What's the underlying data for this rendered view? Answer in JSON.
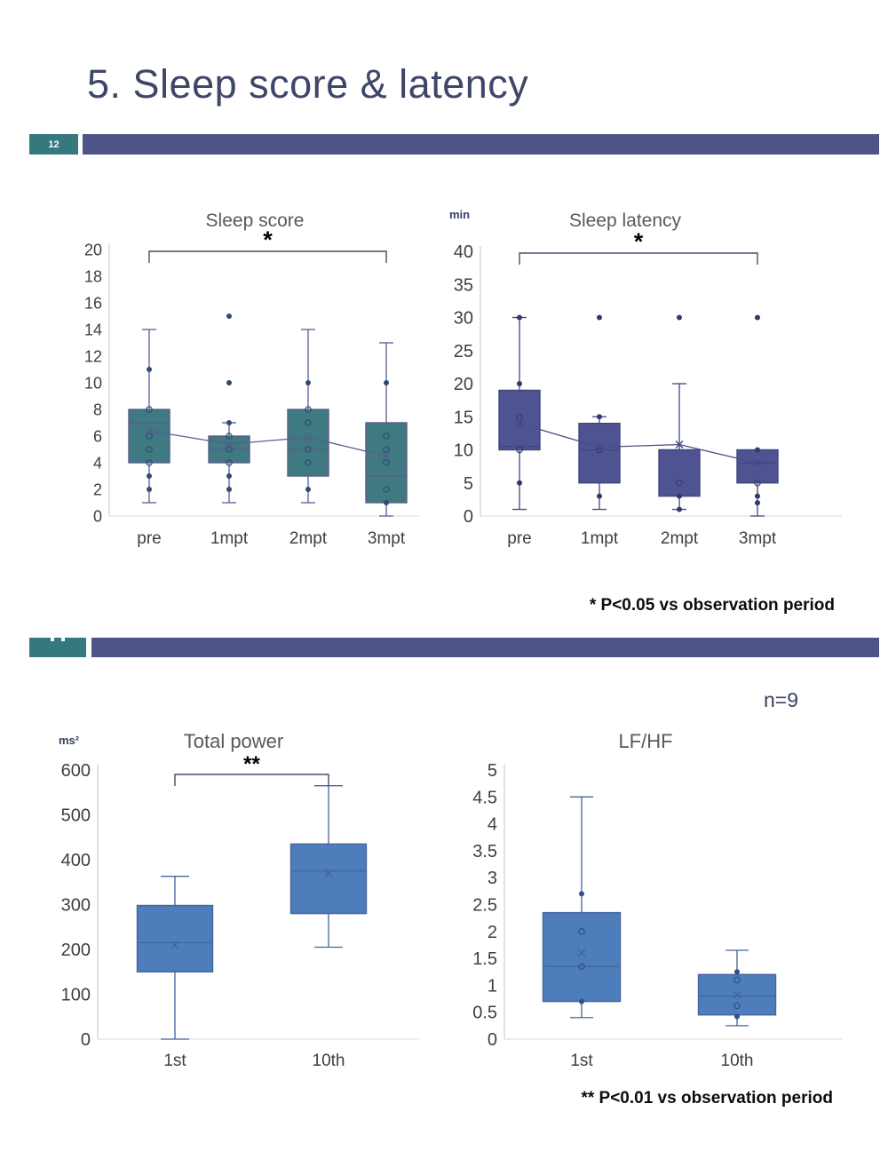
{
  "page": {
    "title": "5. Sleep score & latency",
    "slide_number": "12",
    "note1": "* P<0.05 vs observation period",
    "note2": "** P<0.01 vs observation period",
    "sample_size": "n=9"
  },
  "colors": {
    "title_text": "#3F4769",
    "divider_bar": "#4E5488",
    "slide_badge": "#35797E",
    "axis_text": "#3f3f3f",
    "chart_title_text": "#595959",
    "unit_text": "#3A4163"
  },
  "chart_data": [
    {
      "type": "box",
      "title": "Sleep score",
      "unit": "",
      "categories": [
        "pre",
        "1mpt",
        "2mpt",
        "3mpt"
      ],
      "ylim": [
        0,
        20
      ],
      "ytick_step": 2,
      "grid": false,
      "legend": "none",
      "colors": {
        "box": "#3E7A80",
        "line": "#5B5B8E",
        "dot": "#2F4B74",
        "mean_line": "#5B5B8E"
      },
      "boxes": [
        {
          "q1": 4,
          "q3": 8,
          "median": 7,
          "mean": 6.4,
          "whisker_low": 1,
          "whisker_high": 14,
          "points_open": [
            8,
            6,
            5,
            4
          ],
          "points_filled": [
            11,
            3,
            2
          ]
        },
        {
          "q1": 4,
          "q3": 6,
          "median": 5,
          "mean": 5.4,
          "whisker_low": 1,
          "whisker_high": 7,
          "points_open": [
            6,
            5,
            4
          ],
          "points_filled": [
            15,
            10,
            7,
            3,
            2
          ]
        },
        {
          "q1": 3,
          "q3": 8,
          "median": 5,
          "mean": 5.9,
          "whisker_low": 1,
          "whisker_high": 14,
          "points_open": [
            8,
            7,
            5,
            4
          ],
          "points_filled": [
            10,
            2
          ]
        },
        {
          "q1": 1,
          "q3": 7,
          "median": 3,
          "mean": 4.5,
          "whisker_low": 0,
          "whisker_high": 13,
          "points_open": [
            6,
            5,
            4,
            2
          ],
          "points_filled": [
            10,
            1
          ]
        }
      ],
      "mean_line": [
        6.4,
        5.4,
        5.9,
        4.5
      ],
      "significance": {
        "from": "pre",
        "to": "3mpt",
        "label": "*"
      }
    },
    {
      "type": "box",
      "title": "Sleep latency",
      "unit": "min",
      "categories": [
        "pre",
        "1mpt",
        "2mpt",
        "3mpt"
      ],
      "ylim": [
        0,
        40
      ],
      "ytick_step": 5,
      "grid": false,
      "legend": "none",
      "colors": {
        "box": "#4F5391",
        "line": "#41457D",
        "dot": "#333A6B",
        "mean_line": "#4A4E86"
      },
      "boxes": [
        {
          "q1": 10,
          "q3": 19,
          "median": 10.5,
          "mean": 14,
          "whisker_low": 1,
          "whisker_high": 30,
          "points_open": [
            15,
            10
          ],
          "points_filled": [
            30,
            20,
            5
          ]
        },
        {
          "q1": 5,
          "q3": 14,
          "median": 10,
          "mean": 10.4,
          "whisker_low": 1,
          "whisker_high": 15,
          "points_open": [
            10
          ],
          "points_filled": [
            30,
            15,
            3
          ]
        },
        {
          "q1": 3,
          "q3": 10,
          "median": 10,
          "mean": 10.8,
          "whisker_low": 1,
          "whisker_high": 20,
          "points_open": [
            5
          ],
          "points_filled": [
            30,
            3,
            1
          ]
        },
        {
          "q1": 5,
          "q3": 10,
          "median": 8,
          "mean": 8,
          "whisker_low": 0,
          "whisker_high": 10,
          "points_open": [
            5
          ],
          "points_filled": [
            30,
            10,
            3,
            2
          ]
        }
      ],
      "mean_line": [
        14,
        10.4,
        10.8,
        8
      ],
      "significance": {
        "from": "pre",
        "to": "3mpt",
        "label": "*"
      }
    },
    {
      "type": "box",
      "title": "Total power",
      "unit": "ms²",
      "categories": [
        "1st",
        "10th"
      ],
      "ylim": [
        0,
        600
      ],
      "ytick_step": 100,
      "grid": false,
      "legend": "none",
      "colors": {
        "box": "#4E7DBB",
        "line": "#44649F",
        "dot": "#2E4E8E",
        "mean_line": "#44649F"
      },
      "boxes": [
        {
          "q1": 150,
          "q3": 298,
          "median": 215,
          "mean": 210,
          "whisker_low": 0,
          "whisker_high": 363,
          "points_open": [],
          "points_filled": []
        },
        {
          "q1": 280,
          "q3": 435,
          "median": 375,
          "mean": 370,
          "whisker_low": 205,
          "whisker_high": 565,
          "points_open": [],
          "points_filled": []
        }
      ],
      "mean_line": null,
      "significance": {
        "from": "1st",
        "to": "10th",
        "label": "**"
      }
    },
    {
      "type": "box",
      "title": "LF/HF",
      "unit": "",
      "categories": [
        "1st",
        "10th"
      ],
      "ylim": [
        0,
        5
      ],
      "ytick_step": 0.5,
      "grid": false,
      "legend": "none",
      "colors": {
        "box": "#4E7DBB",
        "line": "#44649F",
        "dot": "#2E4E8E",
        "mean_line": "#44649F"
      },
      "boxes": [
        {
          "q1": 0.7,
          "q3": 2.35,
          "median": 1.35,
          "mean": 1.6,
          "whisker_low": 0.4,
          "whisker_high": 4.5,
          "points_open": [
            2,
            1.35
          ],
          "points_filled": [
            2.7,
            0.7
          ]
        },
        {
          "q1": 0.45,
          "q3": 1.2,
          "median": 0.8,
          "mean": 0.82,
          "whisker_low": 0.25,
          "whisker_high": 1.65,
          "points_open": [
            1.1,
            0.62
          ],
          "points_filled": [
            1.25,
            0.42
          ]
        }
      ],
      "mean_line": null,
      "significance": null
    }
  ]
}
